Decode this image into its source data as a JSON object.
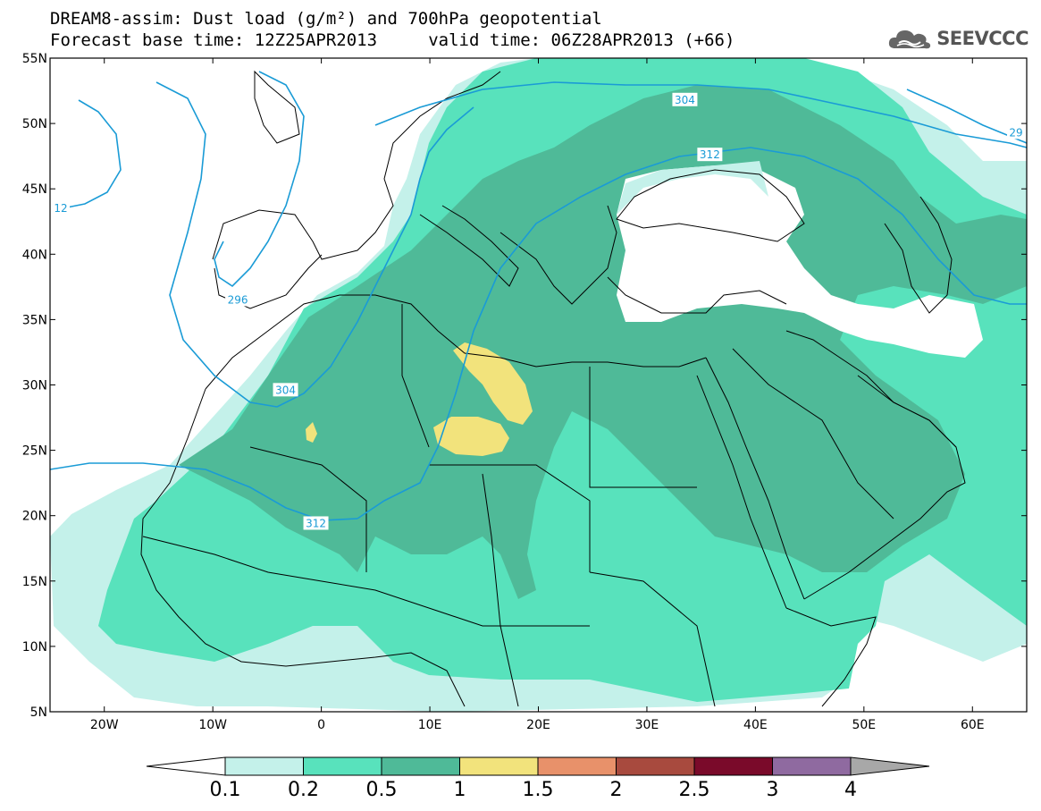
{
  "title_line1": "DREAM8-assim: Dust load (g/m²) and 700hPa geopotential",
  "title_line2": "Forecast base time: 12Z25APR2013     valid time: 06Z28APR2013 (+66)",
  "logo": {
    "text": "SEEVCCC",
    "icon": "cloud-icon"
  },
  "map": {
    "lon_range": [
      -25,
      65
    ],
    "lat_range": [
      5,
      55
    ],
    "lon_ticks": [
      {
        "value": -20,
        "label": "20W"
      },
      {
        "value": -10,
        "label": "10W"
      },
      {
        "value": 0,
        "label": "0"
      },
      {
        "value": 10,
        "label": "10E"
      },
      {
        "value": 20,
        "label": "20E"
      },
      {
        "value": 30,
        "label": "30E"
      },
      {
        "value": 40,
        "label": "40E"
      },
      {
        "value": 50,
        "label": "50E"
      },
      {
        "value": 60,
        "label": "60E"
      }
    ],
    "lat_ticks": [
      {
        "value": 55,
        "label": "55N"
      },
      {
        "value": 50,
        "label": "50N"
      },
      {
        "value": 45,
        "label": "45N"
      },
      {
        "value": 40,
        "label": "40N"
      },
      {
        "value": 35,
        "label": "35N"
      },
      {
        "value": 30,
        "label": "30N"
      },
      {
        "value": 25,
        "label": "25N"
      },
      {
        "value": 20,
        "label": "20N"
      },
      {
        "value": 15,
        "label": "15N"
      },
      {
        "value": 10,
        "label": "10N"
      },
      {
        "value": 5,
        "label": "5N"
      }
    ],
    "contour_labels": [
      {
        "text": "304",
        "lon": 33.5,
        "lat": 51.8
      },
      {
        "text": "312",
        "lon": 35.8,
        "lat": 47.6
      },
      {
        "text": "304",
        "lon": -3.3,
        "lat": 29.6
      },
      {
        "text": "312",
        "lon": -0.5,
        "lat": 19.4
      },
      {
        "text": "296",
        "lon": -7.7,
        "lat": 36.5
      },
      {
        "text": "12",
        "lon": -25,
        "lat": 43.5
      },
      {
        "text": "29",
        "lon": 64.5,
        "lat": 49.3
      }
    ]
  },
  "legend": {
    "bins": [
      {
        "color": "#c4f1ea"
      },
      {
        "color": "#58e2bc"
      },
      {
        "color": "#4fba98"
      },
      {
        "color": "#f2e37c"
      },
      {
        "color": "#e8916a"
      },
      {
        "color": "#a84a3e"
      },
      {
        "color": "#7a0a2a"
      },
      {
        "color": "#8f6aa0"
      }
    ],
    "under_color": "#ffffff",
    "over_color": "#a8a8a8",
    "labels": [
      "0.1",
      "0.2",
      "0.5",
      "1",
      "1.5",
      "2",
      "2.5",
      "3",
      "4"
    ]
  }
}
